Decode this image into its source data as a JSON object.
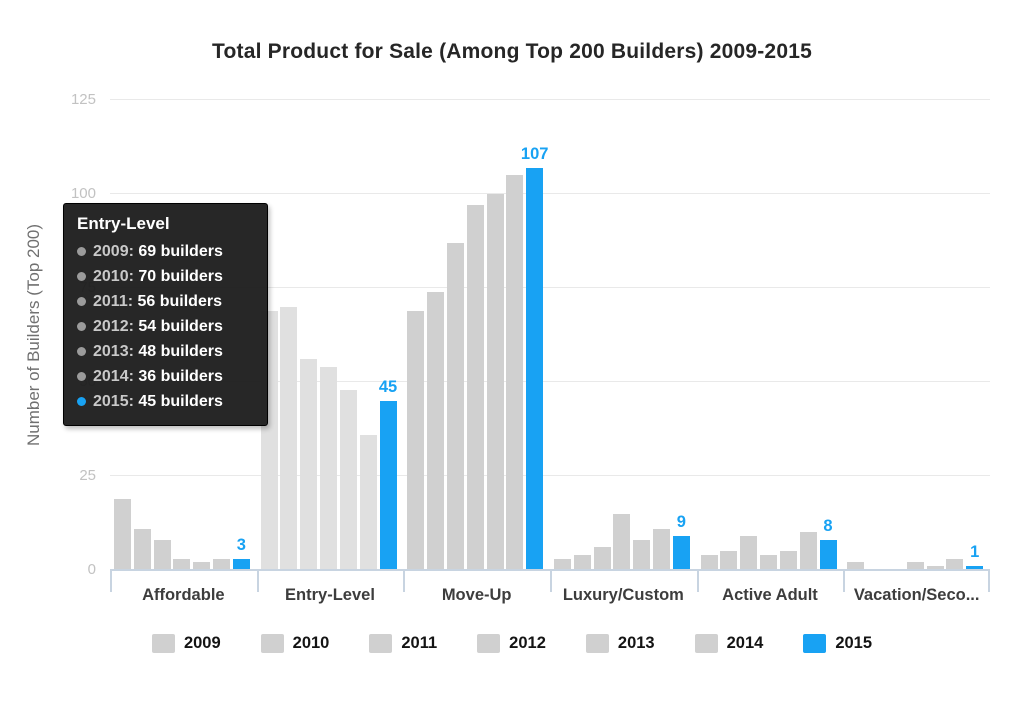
{
  "colors": {
    "bar_gray": "#d0d0d0",
    "bar_gray_hover": "#e0e0e0",
    "bar_blue": "#18a2f3",
    "value_label_blue": "#18a2f3",
    "tooltip_bullet_gray": "#9b9b9b"
  },
  "chart_data": {
    "type": "bar",
    "title": "Total Product for Sale (Among Top 200 Builders) 2009-2015",
    "xlabel": "",
    "ylabel": "Number of Builders (Top 200)",
    "categories": [
      "Affordable",
      "Entry-Level",
      "Move-Up",
      "Luxury/Custom",
      "Active Adult",
      "Vacation/Seco..."
    ],
    "series": [
      {
        "name": "2009",
        "color": "#d0d0d0",
        "values": [
          19,
          69,
          69,
          3,
          4,
          2
        ]
      },
      {
        "name": "2010",
        "color": "#d0d0d0",
        "values": [
          11,
          70,
          74,
          4,
          5,
          0
        ]
      },
      {
        "name": "2011",
        "color": "#d0d0d0",
        "values": [
          8,
          56,
          87,
          6,
          9,
          0
        ]
      },
      {
        "name": "2012",
        "color": "#d0d0d0",
        "values": [
          3,
          54,
          97,
          15,
          4,
          2
        ]
      },
      {
        "name": "2013",
        "color": "#d0d0d0",
        "values": [
          2,
          48,
          100,
          8,
          5,
          1
        ]
      },
      {
        "name": "2014",
        "color": "#d0d0d0",
        "values": [
          3,
          36,
          105,
          11,
          10,
          3
        ]
      },
      {
        "name": "2015",
        "color": "#18a2f3",
        "values": [
          3,
          45,
          107,
          9,
          8,
          1
        ],
        "data_labels_visible": true
      }
    ],
    "data_labels_2015": [
      "3",
      "45",
      "107",
      "9",
      "8",
      "1"
    ],
    "ylim": [
      0,
      125
    ],
    "yticks": [
      "0",
      "25",
      "50",
      "75",
      "100",
      "125"
    ],
    "grid": true,
    "legend_position": "bottom",
    "highlighted_category": "Entry-Level"
  },
  "legend": {
    "items": [
      {
        "label": "2009",
        "color": "#d0d0d0"
      },
      {
        "label": "2010",
        "color": "#d0d0d0"
      },
      {
        "label": "2011",
        "color": "#d0d0d0"
      },
      {
        "label": "2012",
        "color": "#d0d0d0"
      },
      {
        "label": "2013",
        "color": "#d0d0d0"
      },
      {
        "label": "2014",
        "color": "#d0d0d0"
      },
      {
        "label": "2015",
        "color": "#18a2f3"
      }
    ]
  },
  "tooltip": {
    "title": "Entry-Level",
    "rows": [
      {
        "year": "2009:",
        "value": "69 builders",
        "bullet_color": "#9b9b9b"
      },
      {
        "year": "2010:",
        "value": "70 builders",
        "bullet_color": "#9b9b9b"
      },
      {
        "year": "2011:",
        "value": "56 builders",
        "bullet_color": "#9b9b9b"
      },
      {
        "year": "2012:",
        "value": "54 builders",
        "bullet_color": "#9b9b9b"
      },
      {
        "year": "2013:",
        "value": "48 builders",
        "bullet_color": "#9b9b9b"
      },
      {
        "year": "2014:",
        "value": "36 builders",
        "bullet_color": "#9b9b9b"
      },
      {
        "year": "2015:",
        "value": "45 builders",
        "bullet_color": "#18a2f3"
      }
    ]
  }
}
